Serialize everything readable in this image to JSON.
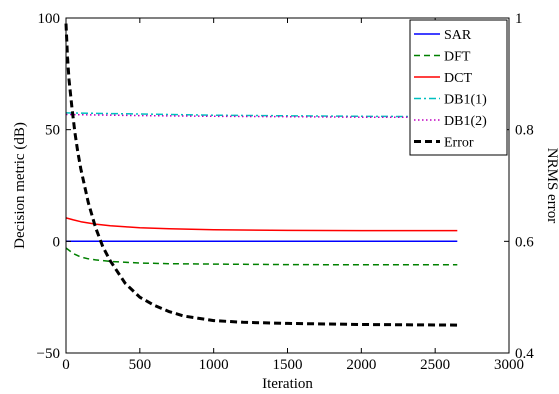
{
  "chart_data": {
    "type": "line",
    "xlabel": "Iteration",
    "ylabel_left": "Decision metric (dB)",
    "ylabel_right": "NRMS error",
    "xlim": [
      0,
      3000
    ],
    "ylim_left": [
      -50,
      100
    ],
    "ylim_right": [
      0.4,
      1.0
    ],
    "x_ticks": [
      0,
      500,
      1000,
      1500,
      2000,
      2500,
      3000
    ],
    "y_ticks_left": [
      -50,
      0,
      50,
      100
    ],
    "y_ticks_right": [
      0.4,
      0.6,
      0.8,
      1.0
    ],
    "x_tick_labels": [
      "0",
      "500",
      "1000",
      "1500",
      "2000",
      "2500",
      "3000"
    ],
    "y_tick_labels_left": [
      "−50",
      "0",
      "50",
      "100"
    ],
    "y_tick_labels_right": [
      "0.4",
      "0.6",
      "0.8",
      "1"
    ],
    "grid": false,
    "legend_position": "top-right",
    "series": [
      {
        "name": "SAR",
        "axis": "left",
        "color": "#0000ff",
        "dash": "solid",
        "x": [
          0,
          2650
        ],
        "y": [
          0,
          0
        ]
      },
      {
        "name": "DFT",
        "axis": "left",
        "color": "#008000",
        "dash": "dashed",
        "x": [
          0,
          50,
          100,
          150,
          200,
          300,
          400,
          500,
          700,
          1000,
          1500,
          2000,
          2650
        ],
        "y": [
          -3,
          -5.5,
          -7,
          -7.8,
          -8.3,
          -9,
          -9.4,
          -9.7,
          -10,
          -10.2,
          -10.4,
          -10.5,
          -10.5
        ]
      },
      {
        "name": "DCT",
        "axis": "left",
        "color": "#ff0000",
        "dash": "solid",
        "x": [
          0,
          50,
          100,
          200,
          300,
          400,
          500,
          700,
          1000,
          1500,
          2000,
          2650
        ],
        "y": [
          10.5,
          9.6,
          8.8,
          7.7,
          7,
          6.5,
          6.1,
          5.6,
          5.2,
          4.9,
          4.8,
          4.8
        ]
      },
      {
        "name": "DB1(1)",
        "axis": "left",
        "color": "#00bfbf",
        "dash": "dashdot",
        "x": [
          0,
          500,
          1000,
          1500,
          2000,
          2650
        ],
        "y": [
          57.5,
          57,
          56.5,
          56.2,
          56,
          55.8
        ]
      },
      {
        "name": "DB1(2)",
        "axis": "left",
        "color": "#bf00bf",
        "dash": "dotted",
        "x": [
          0,
          500,
          1000,
          1500,
          2000,
          2650
        ],
        "y": [
          56.8,
          56.3,
          56,
          55.8,
          55.6,
          55.5
        ]
      },
      {
        "name": "Error",
        "axis": "right",
        "color": "#000000",
        "dash": "thickdashed",
        "x": [
          0,
          10,
          20,
          40,
          60,
          80,
          100,
          150,
          200,
          250,
          300,
          400,
          500,
          600,
          700,
          800,
          1000,
          1200,
          1500,
          2000,
          2650
        ],
        "y": [
          0.99,
          0.93,
          0.89,
          0.84,
          0.795,
          0.76,
          0.73,
          0.67,
          0.625,
          0.59,
          0.565,
          0.525,
          0.5,
          0.485,
          0.474,
          0.466,
          0.458,
          0.455,
          0.453,
          0.451,
          0.45
        ]
      }
    ]
  }
}
